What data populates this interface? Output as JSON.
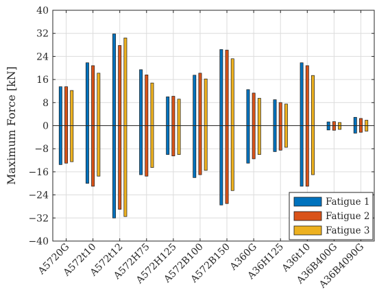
{
  "chart_data": {
    "type": "bar",
    "ylabel": "Maximum Force [kN]",
    "xlabel": "",
    "ylim": [
      -40,
      40
    ],
    "yticks": [
      -40,
      -32,
      -24,
      -16,
      -8,
      0,
      8,
      16,
      24,
      32,
      40
    ],
    "grid": true,
    "legend_position": "bottom-right",
    "categories": [
      "A5720G",
      "A572t10",
      "A572t12",
      "A572H75",
      "A572H125",
      "A572B100",
      "A572B150",
      "A360G",
      "A36H125",
      "A36t10",
      "A36B400G",
      "A36B4090G"
    ],
    "series": [
      {
        "name": "Fatigue 1",
        "color": "#0072BD",
        "positive": [
          13.5,
          21.8,
          31.8,
          19.4,
          10.0,
          17.5,
          26.4,
          12.5,
          9.0,
          21.8,
          1.3,
          2.9
        ],
        "negative": [
          -13.5,
          -20.0,
          -32.0,
          -17.0,
          -10.0,
          -18.0,
          -27.5,
          -13.0,
          -9.0,
          -21.0,
          -1.5,
          -2.6
        ]
      },
      {
        "name": "Fatigue 2",
        "color": "#D95319",
        "positive": [
          13.5,
          20.8,
          27.8,
          17.6,
          10.2,
          18.2,
          26.2,
          11.3,
          8.0,
          20.8,
          1.4,
          2.5
        ],
        "negative": [
          -13.0,
          -21.0,
          -29.0,
          -17.5,
          -10.5,
          -17.0,
          -27.0,
          -11.5,
          -8.5,
          -21.0,
          -1.6,
          -2.3
        ]
      },
      {
        "name": "Fatigue 3",
        "color": "#EDB120",
        "positive": [
          12.2,
          18.2,
          30.4,
          14.8,
          9.2,
          16.2,
          23.2,
          9.5,
          7.5,
          17.4,
          1.1,
          1.9
        ],
        "negative": [
          -12.5,
          -17.5,
          -31.5,
          -14.5,
          -10.0,
          -15.5,
          -22.5,
          -10.0,
          -7.5,
          -17.0,
          -1.3,
          -1.9
        ]
      }
    ]
  }
}
